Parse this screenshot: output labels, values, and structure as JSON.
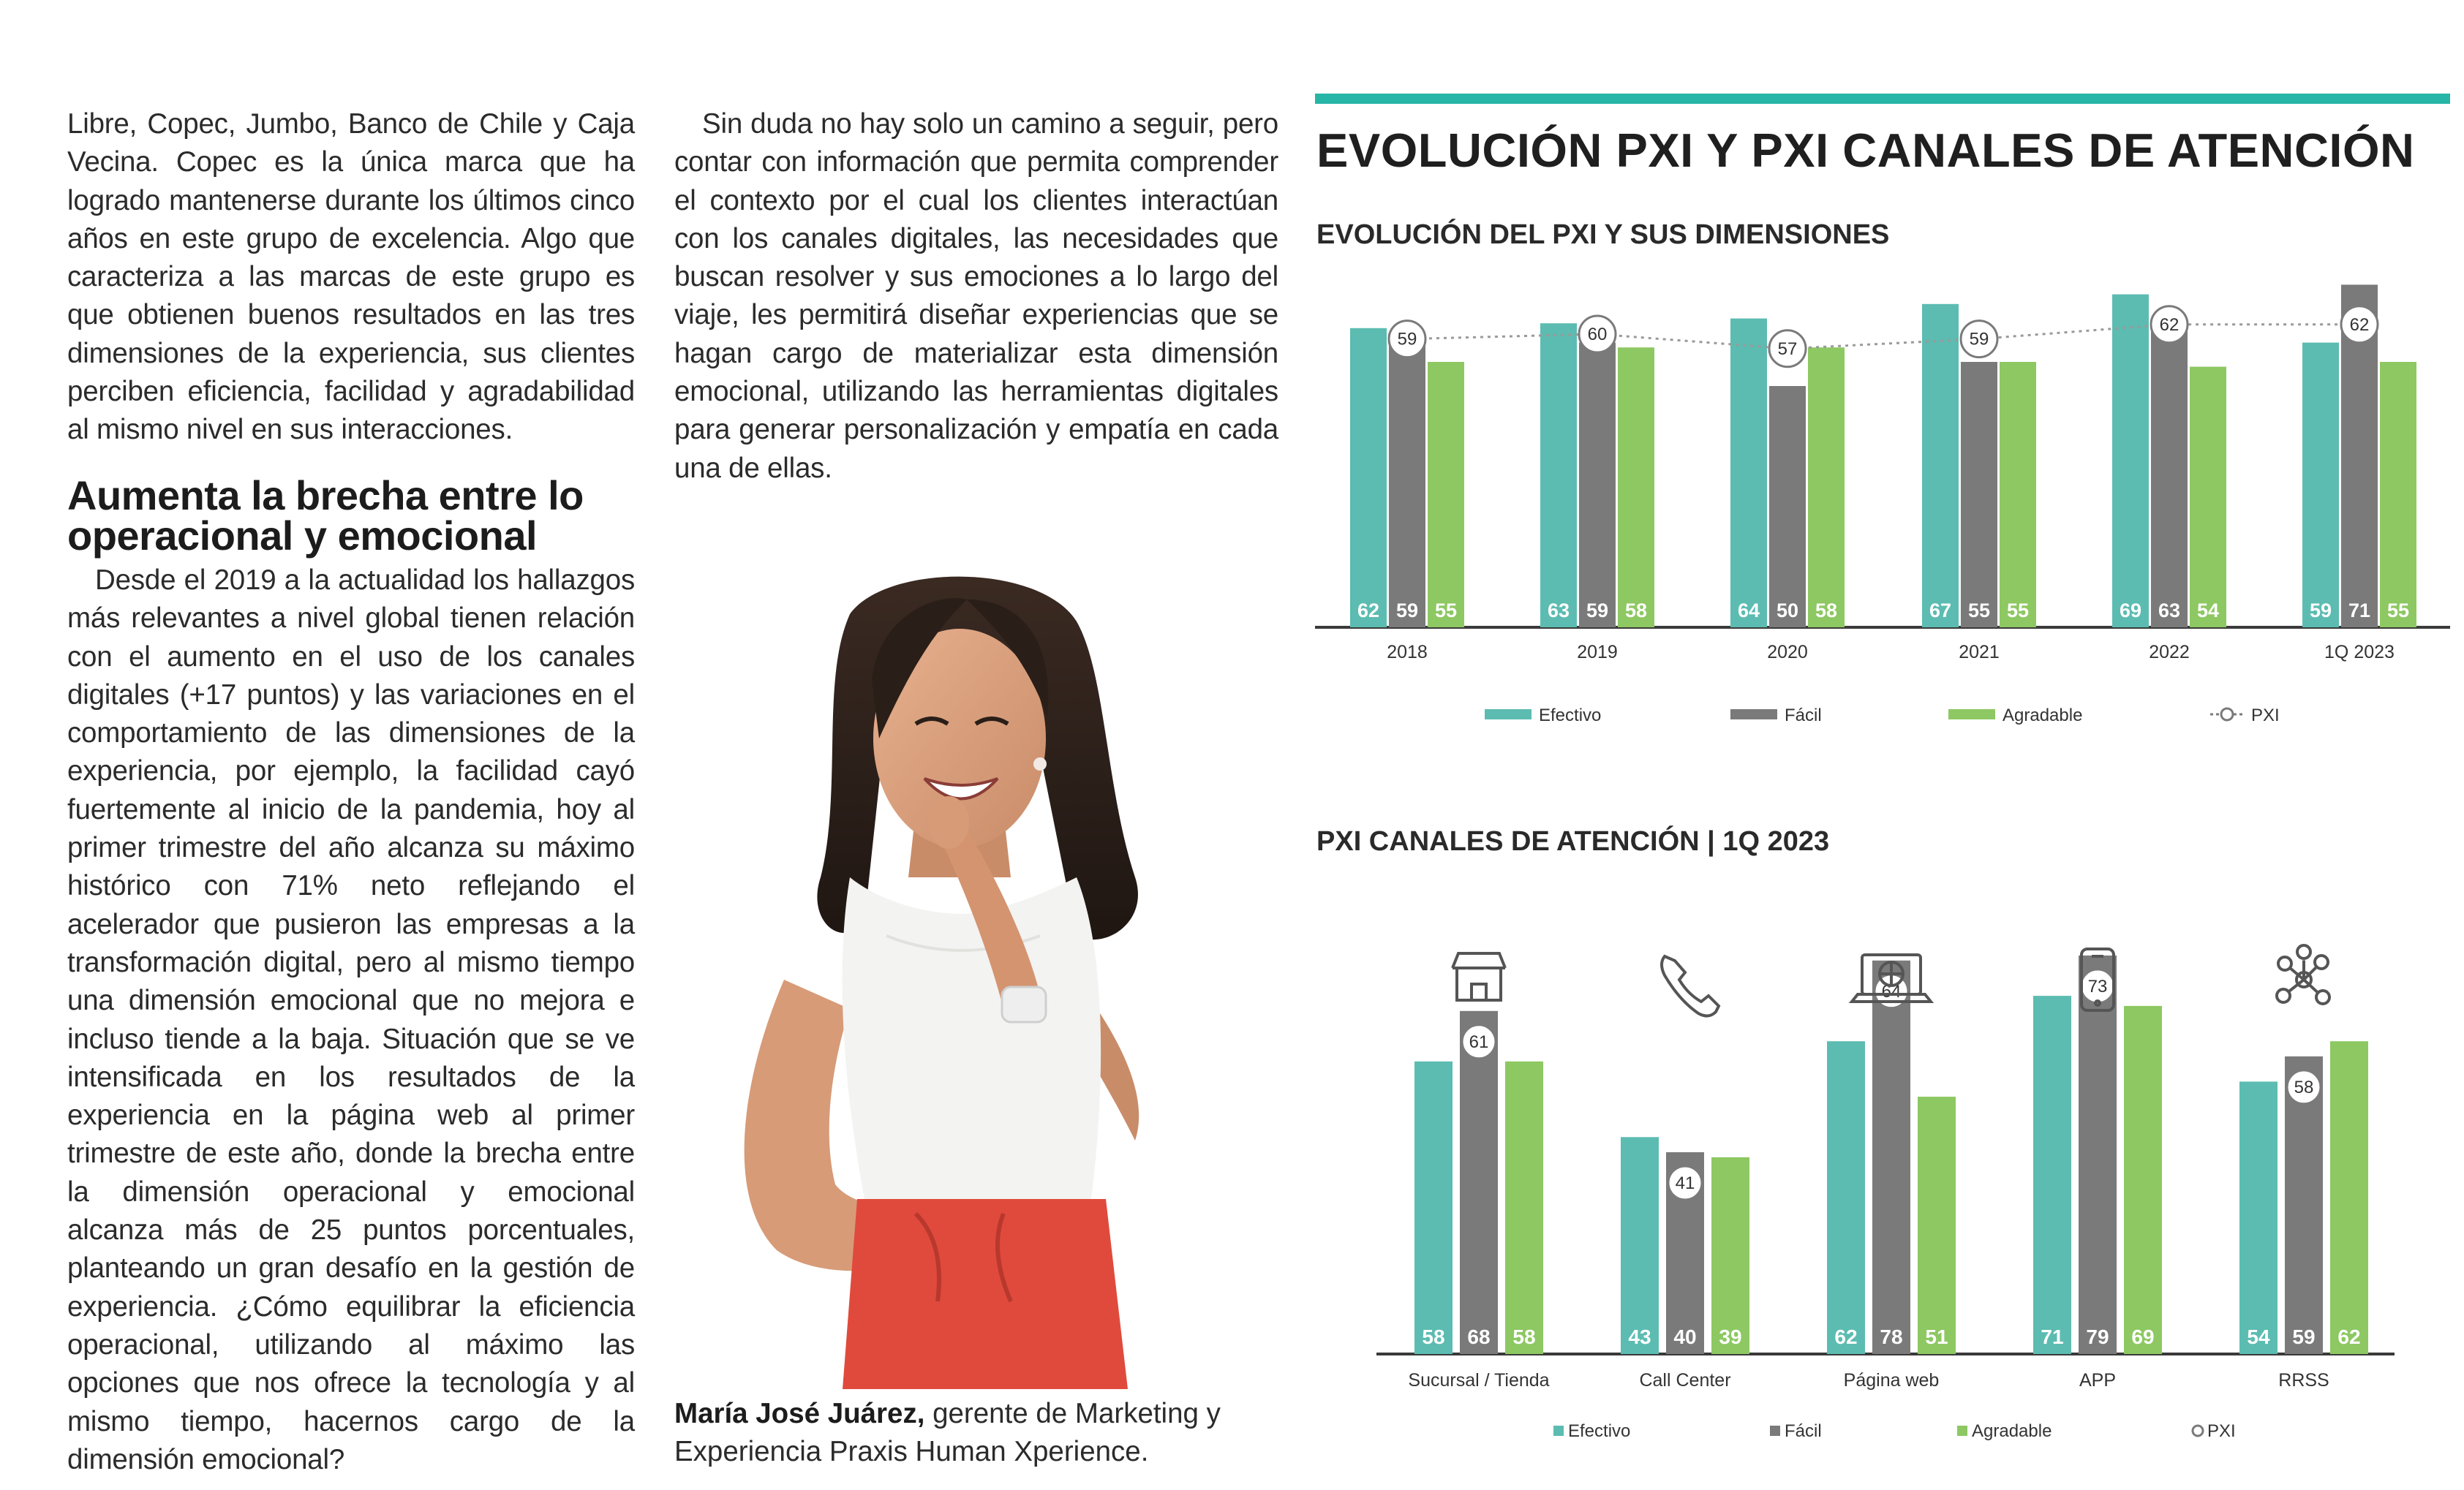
{
  "article": {
    "col1_para1": "Libre, Copec, Jumbo, Banco de Chile y Caja Vecina. Copec es la única marca que ha logrado mantenerse durante los últimos cinco años en este grupo de excelencia. Algo que caracteriza a las marcas de este grupo es que obtienen buenos resultados en las tres dimensiones de la experiencia, sus clientes perciben eficiencia, facilidad y agradabilidad al mismo nivel en sus interacciones.",
    "heading": "Aumenta la brecha entre lo operacional y emocional",
    "col1_para2": "Desde el 2019 a la actualidad los hallazgos más relevantes a nivel global tienen relación con el aumento en el uso de los canales digitales (+17 puntos) y las variaciones en el comportamiento de las dimensiones de la experiencia, por ejemplo, la facilidad cayó fuertemente al inicio de la pandemia, hoy al primer trimestre del año alcanza su máximo histórico con 71% neto reflejando el acelerador que pusieron las empresas a la transformación digital, pero al mismo tiempo una dimensión emocional que no mejora e incluso tiende a la baja. Situación que se ve intensificada en los resultados de la experiencia en la página web al primer trimestre de este año, donde la brecha entre la dimensión operacional y emocional alcanza más de 25 puntos porcentuales, planteando un gran desafío en la gestión de experiencia. ¿Cómo equilibrar la eficiencia operacional, utilizando al máximo las opciones que nos ofrece la tecnología y al mismo tiempo, hacernos cargo de la dimensión emocional?",
    "col2_para1": "Sin duda no hay solo un camino a seguir, pero contar con información que permita comprender el contexto por el cual los clientes interactúan con los canales digitales, las necesidades que buscan resolver y sus emociones a lo largo del viaje, les permitirá diseñar experiencias que se hagan cargo de materializar esta dimensión emocional, utilizando las herramientas digitales para generar personalización y empatía en cada una de ellas.",
    "caption_name": "María José Juárez,",
    "caption_role": " gerente de Marketing y Experiencia Praxis Human Xperience."
  },
  "infographic": {
    "title": "EVOLUCIÓN PXI Y PXI CANALES DE ATENCIÓN",
    "accent_color": "#26b5a7"
  },
  "chart_data": [
    {
      "type": "bar",
      "title": "EVOLUCIÓN DEL PXI Y SUS DIMENSIONES",
      "categories": [
        "2018",
        "2019",
        "2020",
        "2021",
        "2022",
        "1Q 2023"
      ],
      "series": [
        {
          "name": "Efectivo",
          "color": "#5cbcb1",
          "values": [
            62,
            63,
            64,
            67,
            69,
            59
          ]
        },
        {
          "name": "Fácil",
          "color": "#7a7a7a",
          "values": [
            59,
            59,
            50,
            55,
            63,
            71
          ]
        },
        {
          "name": "Agradable",
          "color": "#8dc862",
          "values": [
            55,
            58,
            58,
            55,
            54,
            55
          ]
        }
      ],
      "line": {
        "name": "PXI",
        "values": [
          59,
          60,
          57,
          59,
          62,
          62
        ]
      },
      "legend": [
        "Efectivo",
        "Fácil",
        "Agradable",
        "PXI"
      ],
      "ylim": [
        0,
        75
      ]
    },
    {
      "type": "bar",
      "title": "PXI CANALES DE ATENCIÓN | 1Q 2023",
      "categories": [
        "Sucursal / Tienda",
        "Call Center",
        "Página web",
        "APP",
        "RRSS"
      ],
      "icons": [
        "store-icon",
        "phone-icon",
        "laptop-icon",
        "mobile-icon",
        "network-icon"
      ],
      "series": [
        {
          "name": "Efectivo",
          "color": "#5cbcb1",
          "values": [
            58,
            43,
            62,
            71,
            54
          ]
        },
        {
          "name": "Fácil",
          "color": "#7a7a7a",
          "values": [
            68,
            40,
            78,
            79,
            59
          ]
        },
        {
          "name": "Agradable",
          "color": "#8dc862",
          "values": [
            58,
            39,
            51,
            69,
            62
          ]
        }
      ],
      "pxi": {
        "name": "PXI",
        "values": [
          61,
          41,
          64,
          73,
          58
        ]
      },
      "legend": [
        "Efectivo",
        "Fácil",
        "Agradable",
        "PXI"
      ],
      "ylim": [
        0,
        85
      ]
    }
  ]
}
